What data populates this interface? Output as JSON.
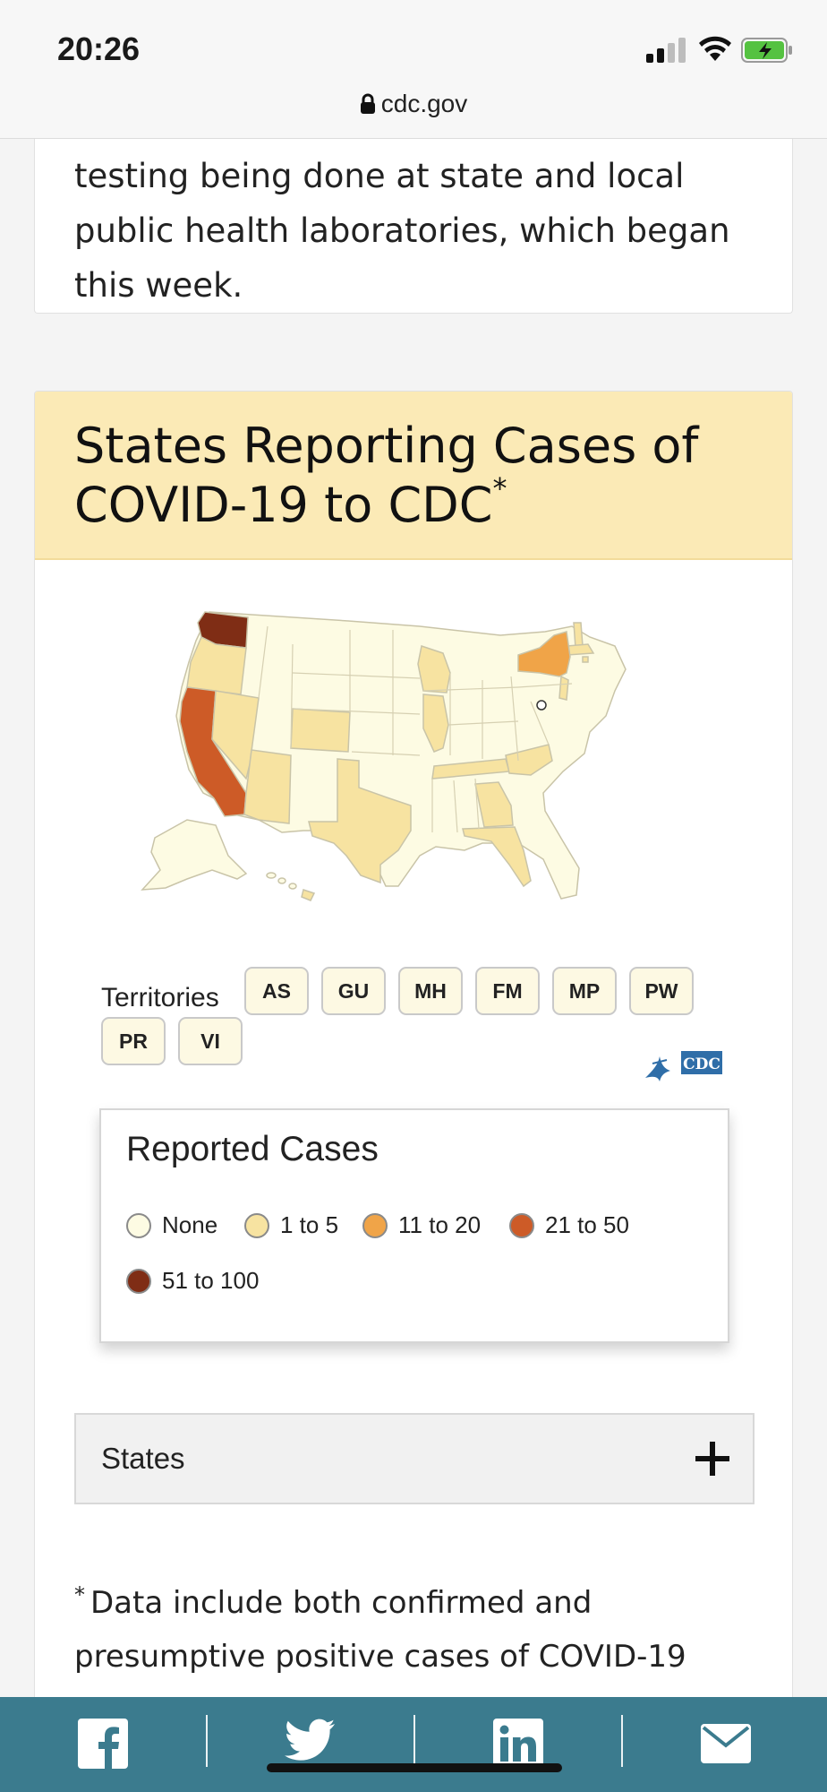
{
  "status": {
    "time": "20:26"
  },
  "browser": {
    "url": "cdc.gov"
  },
  "intro": {
    "text": "been tested at CDC. This does not include testing being done at state and local public health laboratories, which began this week."
  },
  "card": {
    "title": "States Reporting Cases of COVID-19 to CDC",
    "title_mark": "*"
  },
  "map": {
    "name": "US map"
  },
  "territories": {
    "label": "Territories",
    "items": [
      "AS",
      "GU",
      "MH",
      "FM",
      "MP",
      "PW",
      "PR",
      "VI"
    ]
  },
  "legend": {
    "title": "Reported Cases",
    "items": [
      {
        "label": "None",
        "color": "#fdfbe3"
      },
      {
        "label": "1 to 5",
        "color": "#f7e3a1"
      },
      {
        "label": "11 to 20",
        "color": "#f0a448"
      },
      {
        "label": "21 to 50",
        "color": "#cd5b27"
      },
      {
        "label": "51 to 100",
        "color": "#7f2d15"
      }
    ]
  },
  "states_accordion": {
    "label": "States"
  },
  "footnote": {
    "mark": "*",
    "text": "Data include both confirmed and presumptive positive cases of COVID-19"
  },
  "share": {
    "items": [
      "facebook-icon",
      "twitter-icon",
      "linkedin-icon",
      "email-icon"
    ],
    "bar_color": "#3b7b8e"
  },
  "colors": {
    "header_bg": "#fbeab6",
    "accent": "#3b7b8e"
  }
}
